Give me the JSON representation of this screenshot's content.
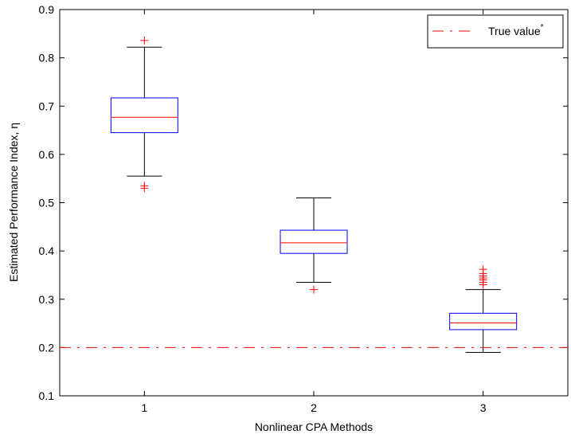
{
  "chart_data": {
    "type": "box",
    "xlabel": "Nonlinear CPA Methods",
    "ylabel": "Estimated Performance Index, η",
    "ylim": [
      0.1,
      0.9
    ],
    "yticks": [
      "0.1",
      "0.2",
      "0.3",
      "0.4",
      "0.5",
      "0.6",
      "0.7",
      "0.8",
      "0.9"
    ],
    "categories": [
      "1",
      "2",
      "3"
    ],
    "boxes": [
      {
        "category": "1",
        "q1": 0.645,
        "median": 0.677,
        "q3": 0.717,
        "whisker_low": 0.555,
        "whisker_high": 0.822,
        "outliers": [
          0.836,
          0.535,
          0.53
        ]
      },
      {
        "category": "2",
        "q1": 0.395,
        "median": 0.417,
        "q3": 0.443,
        "whisker_low": 0.335,
        "whisker_high": 0.51,
        "outliers": [
          0.32
        ]
      },
      {
        "category": "3",
        "q1": 0.237,
        "median": 0.251,
        "q3": 0.271,
        "whisker_low": 0.19,
        "whisker_high": 0.32,
        "outliers": [
          0.33,
          0.335,
          0.34,
          0.344,
          0.348,
          0.353,
          0.362
        ]
      }
    ],
    "reference_line": {
      "name": "True value",
      "superscript": "*",
      "value": 0.2,
      "style": "dash-dot",
      "color": "#ff0000"
    },
    "legend": {
      "position": "top-right",
      "entries": [
        "True value"
      ]
    },
    "colors": {
      "box": "#0000ff",
      "median": "#ff0000",
      "whisker": "#000000",
      "outlier": "#ff0000"
    },
    "grid": false
  }
}
